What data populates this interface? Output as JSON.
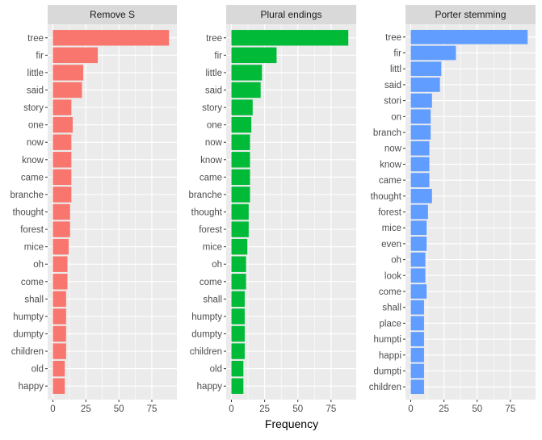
{
  "xlabel": "Frequency",
  "colors": {
    "panel_bg": "#ebebeb",
    "grid": "#ffffff",
    "strip_bg": "#d9d9d9",
    "tick": "#333333"
  },
  "chart_data": [
    {
      "type": "bar",
      "orientation": "horizontal",
      "facet_title": "Remove S",
      "color": "#F8766D",
      "xlim": [
        0,
        90
      ],
      "x_ticks": [
        0,
        25,
        50,
        75
      ],
      "categories": [
        "tree",
        "fir",
        "little",
        "said",
        "story",
        "one",
        "now",
        "know",
        "came",
        "branche",
        "thought",
        "forest",
        "mice",
        "oh",
        "come",
        "shall",
        "humpty",
        "dumpty",
        "children",
        "old",
        "happy"
      ],
      "values": [
        88,
        34,
        23,
        22,
        14,
        15,
        14,
        14,
        14,
        14,
        13,
        13,
        12,
        11,
        11,
        10,
        10,
        10,
        10,
        9,
        9
      ]
    },
    {
      "type": "bar",
      "orientation": "horizontal",
      "facet_title": "Plural endings",
      "color": "#00BA38",
      "xlim": [
        0,
        90
      ],
      "x_ticks": [
        0,
        25,
        50,
        75
      ],
      "categories": [
        "tree",
        "fir",
        "little",
        "said",
        "story",
        "one",
        "now",
        "know",
        "came",
        "branche",
        "thought",
        "forest",
        "mice",
        "oh",
        "come",
        "shall",
        "humpty",
        "dumpty",
        "children",
        "old",
        "happy"
      ],
      "values": [
        88,
        34,
        23,
        22,
        16,
        15,
        14,
        14,
        14,
        14,
        13,
        13,
        12,
        11,
        11,
        10,
        10,
        10,
        10,
        9,
        9
      ]
    },
    {
      "type": "bar",
      "orientation": "horizontal",
      "facet_title": "Porter stemming",
      "color": "#619CFF",
      "xlim": [
        0,
        90
      ],
      "x_ticks": [
        0,
        25,
        50,
        75
      ],
      "categories": [
        "tree",
        "fir",
        "littl",
        "said",
        "stori",
        "on",
        "branch",
        "now",
        "know",
        "came",
        "thought",
        "forest",
        "mice",
        "even",
        "oh",
        "look",
        "come",
        "shall",
        "place",
        "humpti",
        "happi",
        "dumpti",
        "children"
      ],
      "values": [
        88,
        34,
        23,
        22,
        16,
        15,
        15,
        14,
        14,
        14,
        16,
        13,
        12,
        12,
        11,
        11,
        12,
        10,
        10,
        10,
        10,
        10,
        10
      ]
    }
  ]
}
